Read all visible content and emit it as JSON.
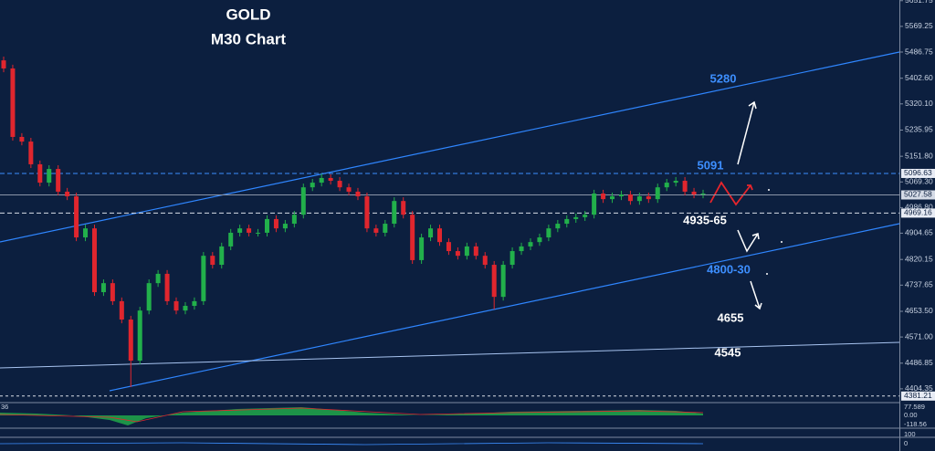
{
  "chart_data": {
    "type": "candlestick",
    "title": "GOLD",
    "subtitle": "M30 Chart",
    "ylim": [
      4363,
      5654
    ],
    "yticks": [
      5651.75,
      5569.25,
      5486.75,
      {
        "value": 5402.6,
        "label": "5402.60"
      },
      {
        "value": 5320.1,
        "label": "5320.10"
      },
      5235.95,
      {
        "value": 5151.8,
        "label": "5151.80"
      },
      {
        "value": 5069.3,
        "label": "5069.30"
      },
      {
        "value": 4986.8,
        "label": "4986.80"
      },
      4904.65,
      4820.15,
      4737.65,
      {
        "value": 4653.5,
        "label": "4653.50"
      },
      {
        "value": 4571,
        "label": "4571.00"
      },
      4486.85,
      4404.35
    ],
    "price_markers": [
      5096.63,
      5027.58,
      4969.16,
      4381.21
    ],
    "series": [
      {
        "up_color": "#22b04b",
        "down_color": "#e0262e",
        "open": [
          5460,
          5434,
          5214,
          5199,
          5126,
          5067,
          5111,
          5038,
          5023,
          4891,
          4920,
          4715,
          4744,
          4686,
          4627,
          4495,
          4656,
          4744,
          4774,
          4686,
          4656,
          4671,
          4686,
          4832,
          4803,
          4862,
          4906,
          4920,
          4906,
          4906,
          4950,
          4920,
          4935,
          4964,
          5052,
          5067,
          5082,
          5073,
          5052,
          5038,
          5023,
          4920,
          4906,
          4935,
          5008,
          4964,
          4818,
          4891,
          4920,
          4876,
          4847,
          4832,
          4862,
          4832,
          4803,
          4700,
          4803,
          4847,
          4862,
          4876,
          4891,
          4920,
          4935,
          4950,
          4956,
          4964,
          5032,
          5014,
          5023,
          5029,
          5008,
          5023,
          5014,
          5052,
          5067,
          5073,
          5038,
          5029
        ],
        "high": [
          5472,
          5446,
          5226,
          5211,
          5138,
          5123,
          5123,
          5050,
          5035,
          4932,
          4932,
          4756,
          4756,
          4698,
          4639,
          4668,
          4756,
          4786,
          4786,
          4698,
          4683,
          4698,
          4844,
          4844,
          4874,
          4918,
          4932,
          4932,
          4918,
          4962,
          4962,
          4947,
          4976,
          5064,
          5079,
          5096,
          5094,
          5085,
          5064,
          5050,
          5035,
          4932,
          4947,
          5020,
          5020,
          4976,
          4903,
          4932,
          4932,
          4888,
          4859,
          4874,
          4874,
          4844,
          4815,
          4815,
          4859,
          4874,
          4888,
          4903,
          4932,
          4947,
          4962,
          4968,
          4976,
          5044,
          5044,
          5035,
          5041,
          5041,
          5035,
          5035,
          5064,
          5079,
          5085,
          5085,
          5050,
          5044
        ],
        "low": [
          5422,
          5202,
          5187,
          5114,
          5055,
          5055,
          5026,
          5011,
          4879,
          4879,
          4703,
          4703,
          4674,
          4615,
          4410,
          4483,
          4644,
          4732,
          4674,
          4644,
          4644,
          4659,
          4674,
          4791,
          4791,
          4850,
          4894,
          4894,
          4894,
          4894,
          4908,
          4908,
          4923,
          4952,
          5040,
          5055,
          5061,
          5040,
          5026,
          5011,
          4908,
          4894,
          4894,
          4923,
          4952,
          4806,
          4806,
          4879,
          4864,
          4835,
          4820,
          4820,
          4820,
          4791,
          4660,
          4688,
          4791,
          4835,
          4850,
          4864,
          4879,
          4908,
          4923,
          4938,
          4944,
          4952,
          5002,
          5002,
          5011,
          4996,
          4996,
          5002,
          5002,
          5040,
          5055,
          5026,
          5017,
          5017
        ],
        "close": [
          5434,
          5214,
          5199,
          5126,
          5067,
          5111,
          5038,
          5023,
          4891,
          4920,
          4715,
          4744,
          4686,
          4627,
          4495,
          4656,
          4744,
          4774,
          4686,
          4656,
          4671,
          4686,
          4832,
          4803,
          4862,
          4906,
          4920,
          4906,
          4906,
          4950,
          4920,
          4935,
          4964,
          5052,
          5067,
          5082,
          5073,
          5052,
          5038,
          5023,
          4920,
          4906,
          4935,
          5008,
          4964,
          4818,
          4891,
          4920,
          4876,
          4847,
          4832,
          4862,
          4832,
          4803,
          4700,
          4803,
          4847,
          4862,
          4876,
          4891,
          4920,
          4935,
          4950,
          4956,
          4964,
          5032,
          5014,
          5023,
          5029,
          5008,
          5023,
          5014,
          5052,
          5067,
          5073,
          5038,
          5029,
          5032
        ]
      }
    ],
    "annotations": [
      "5280",
      "5091",
      "4935-65",
      "4800-30",
      "4655",
      "4545"
    ],
    "indicator_labels": [
      "36",
      "77.589",
      "0.00",
      "-118.56",
      "100",
      "0"
    ]
  }
}
